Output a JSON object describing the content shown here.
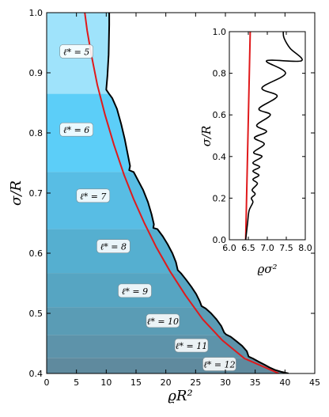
{
  "chart_data": [
    {
      "type": "area",
      "xlabel": "ϱR²",
      "ylabel": "σ/R",
      "xlim": [
        0,
        45
      ],
      "ylim": [
        0.4,
        1.0
      ],
      "xticks": [
        "0",
        "5",
        "10",
        "15",
        "20",
        "25",
        "30",
        "35",
        "40",
        "45"
      ],
      "yticks": [
        "0.4",
        "0.5",
        "0.6",
        "0.7",
        "0.8",
        "0.9",
        "1.0"
      ],
      "colors": {
        "boundary": "#000000",
        "asymptote": "#e0191b",
        "bands": [
          "#9fe3fb",
          "#5ccef8",
          "#58bde4",
          "#55afd0",
          "#56a5c2",
          "#5a9cb5",
          "#5d93aa",
          "#5f8a9e"
        ]
      },
      "bands": [
        {
          "label": "ℓ* = 5",
          "y_range": [
            0.865,
            1.0
          ]
        },
        {
          "label": "ℓ* = 6",
          "y_range": [
            0.735,
            0.865
          ]
        },
        {
          "label": "ℓ* = 7",
          "y_range": [
            0.64,
            0.735
          ]
        },
        {
          "label": "ℓ* = 8",
          "y_range": [
            0.567,
            0.64
          ]
        },
        {
          "label": "ℓ* = 9",
          "y_range": [
            0.51,
            0.567
          ]
        },
        {
          "label": "ℓ* = 10",
          "y_range": [
            0.464,
            0.51
          ]
        },
        {
          "label": "ℓ* = 11",
          "y_range": [
            0.426,
            0.464
          ]
        },
        {
          "label": "ℓ* = 12",
          "y_range": [
            0.4,
            0.426
          ]
        }
      ],
      "band_label_positions": [
        {
          "x": 5.0,
          "y": 0.935
        },
        {
          "x": 5.0,
          "y": 0.805
        },
        {
          "x": 7.8,
          "y": 0.695
        },
        {
          "x": 11.2,
          "y": 0.611
        },
        {
          "x": 14.8,
          "y": 0.537
        },
        {
          "x": 19.5,
          "y": 0.487
        },
        {
          "x": 24.3,
          "y": 0.446
        },
        {
          "x": 29.0,
          "y": 0.415
        }
      ],
      "boundary": [
        [
          10.5,
          1.0
        ],
        [
          10.5,
          0.98
        ],
        [
          10.4,
          0.93
        ],
        [
          10.2,
          0.895
        ],
        [
          10.0,
          0.872
        ],
        [
          10.4,
          0.866
        ],
        [
          11.0,
          0.858
        ],
        [
          11.8,
          0.84
        ],
        [
          12.5,
          0.815
        ],
        [
          13.1,
          0.79
        ],
        [
          13.6,
          0.765
        ],
        [
          14.0,
          0.745
        ],
        [
          13.85,
          0.738
        ],
        [
          14.6,
          0.735
        ],
        [
          15.4,
          0.72
        ],
        [
          16.2,
          0.705
        ],
        [
          17.0,
          0.685
        ],
        [
          17.6,
          0.665
        ],
        [
          18.0,
          0.648
        ],
        [
          17.9,
          0.642
        ],
        [
          18.6,
          0.64
        ],
        [
          19.5,
          0.628
        ],
        [
          20.3,
          0.615
        ],
        [
          21.1,
          0.6
        ],
        [
          21.7,
          0.585
        ],
        [
          22.0,
          0.572
        ],
        [
          22.6,
          0.566
        ],
        [
          23.4,
          0.556
        ],
        [
          24.3,
          0.544
        ],
        [
          25.1,
          0.532
        ],
        [
          25.7,
          0.52
        ],
        [
          26.0,
          0.512
        ],
        [
          26.7,
          0.508
        ],
        [
          27.6,
          0.5
        ],
        [
          28.5,
          0.49
        ],
        [
          29.3,
          0.479
        ],
        [
          29.8,
          0.468
        ],
        [
          30.1,
          0.465
        ],
        [
          30.9,
          0.461
        ],
        [
          31.8,
          0.454
        ],
        [
          32.8,
          0.446
        ],
        [
          33.6,
          0.437
        ],
        [
          33.9,
          0.428
        ],
        [
          34.6,
          0.425
        ],
        [
          35.5,
          0.42
        ],
        [
          36.5,
          0.415
        ],
        [
          37.4,
          0.41
        ],
        [
          38.3,
          0.406
        ],
        [
          39.3,
          0.403
        ],
        [
          40.6,
          0.4
        ]
      ],
      "asymptote": [
        [
          6.4,
          1.0
        ],
        [
          6.8,
          0.97
        ],
        [
          7.5,
          0.93
        ],
        [
          8.5,
          0.88
        ],
        [
          9.8,
          0.83
        ],
        [
          11.3,
          0.78
        ],
        [
          13.0,
          0.73
        ],
        [
          14.6,
          0.69
        ],
        [
          16.4,
          0.65
        ],
        [
          18.4,
          0.61
        ],
        [
          20.7,
          0.57
        ],
        [
          23.3,
          0.53
        ],
        [
          26.2,
          0.49
        ],
        [
          29.5,
          0.455
        ],
        [
          33.2,
          0.425
        ],
        [
          39.0,
          0.4
        ]
      ]
    },
    {
      "type": "line",
      "xlabel": "ϱσ²",
      "ylabel": "σ/R",
      "xlim": [
        6.0,
        8.0
      ],
      "ylim": [
        0.0,
        1.0
      ],
      "xticks": [
        "6.0",
        "6.5",
        "7.0",
        "7.5",
        "8.0"
      ],
      "yticks": [
        "0.0",
        "0.2",
        "0.4",
        "0.6",
        "0.8",
        "1.0"
      ],
      "asymptote_x": [
        6.43,
        6.55
      ],
      "curve": [
        [
          6.43,
          0.0
        ],
        [
          6.48,
          0.08
        ],
        [
          6.52,
          0.14
        ],
        [
          6.62,
          0.18
        ],
        [
          6.58,
          0.2
        ],
        [
          6.68,
          0.22
        ],
        [
          6.6,
          0.24
        ],
        [
          6.74,
          0.27
        ],
        [
          6.62,
          0.29
        ],
        [
          6.78,
          0.31
        ],
        [
          6.62,
          0.33
        ],
        [
          6.8,
          0.35
        ],
        [
          6.62,
          0.37
        ],
        [
          6.86,
          0.4
        ],
        [
          6.64,
          0.42
        ],
        [
          6.92,
          0.46
        ],
        [
          6.66,
          0.49
        ],
        [
          6.98,
          0.52
        ],
        [
          6.72,
          0.55
        ],
        [
          7.08,
          0.6
        ],
        [
          6.78,
          0.63
        ],
        [
          7.26,
          0.69
        ],
        [
          6.86,
          0.73
        ],
        [
          7.48,
          0.8
        ],
        [
          6.98,
          0.86
        ],
        [
          7.9,
          0.86
        ],
        [
          7.6,
          0.92
        ],
        [
          7.44,
          0.97
        ],
        [
          7.42,
          1.0
        ]
      ]
    }
  ]
}
